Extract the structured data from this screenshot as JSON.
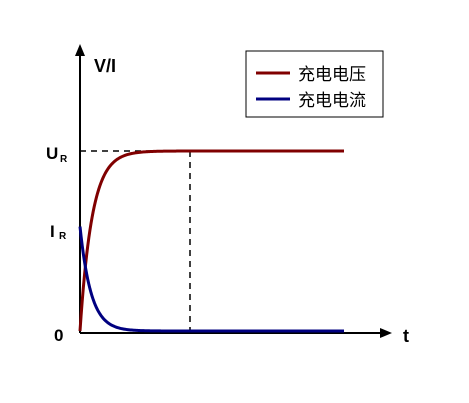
{
  "chart_data": {
    "type": "line",
    "ylabel": "V/I",
    "xlabel": "t",
    "origin_label": "0",
    "y_markers": [
      {
        "main": "U",
        "sub": "R",
        "value": 1.0
      },
      {
        "main": "I",
        "sub": "R",
        "value": 0.58
      }
    ],
    "x_marker": {
      "value": 1.0
    },
    "xlim": [
      0,
      2.4
    ],
    "ylim": [
      0,
      1.3
    ],
    "series": [
      {
        "name": "充电电压",
        "color": "#800000",
        "curve": "charging",
        "x": [
          0,
          0.05,
          0.1,
          0.15,
          0.2,
          0.3,
          0.4,
          0.5,
          0.6,
          0.7,
          0.8,
          0.9,
          1.0,
          1.2,
          1.4,
          1.6,
          1.8,
          2.0,
          2.4
        ],
        "values": [
          0,
          0.39,
          0.63,
          0.78,
          0.86,
          0.93,
          0.955,
          0.97,
          0.98,
          0.987,
          0.992,
          0.996,
          1.0,
          1.0,
          1.0,
          1.0,
          1.0,
          1.0,
          1.0
        ]
      },
      {
        "name": "充电电流",
        "color": "#000080",
        "curve": "discharging",
        "x": [
          0,
          0.05,
          0.1,
          0.15,
          0.2,
          0.3,
          0.4,
          0.5,
          0.6,
          0.7,
          0.8,
          0.9,
          1.0,
          1.2,
          1.4,
          1.6,
          1.8,
          2.0,
          2.4
        ],
        "values": [
          0.58,
          0.36,
          0.22,
          0.14,
          0.09,
          0.05,
          0.035,
          0.025,
          0.018,
          0.013,
          0.009,
          0.006,
          0.004,
          0.002,
          0.001,
          0,
          0,
          0,
          0
        ]
      }
    ],
    "legend": {
      "position": "top-right",
      "items": [
        "充电电压",
        "充电电流"
      ]
    },
    "guides": "dashed"
  }
}
